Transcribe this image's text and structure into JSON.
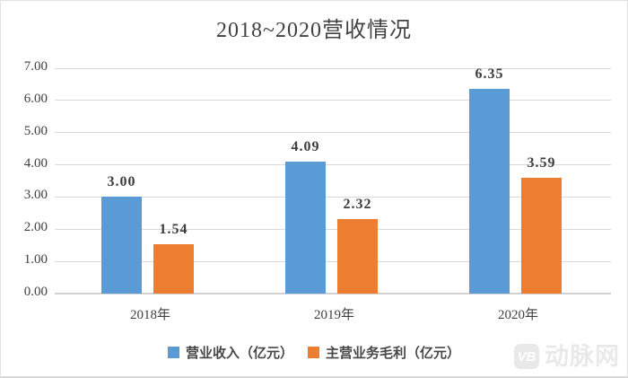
{
  "chart_data": {
    "type": "bar",
    "title": "2018~2020营收情况",
    "categories": [
      "2018年",
      "2019年",
      "2020年"
    ],
    "series": [
      {
        "name": "营业收入（亿元）",
        "color": "#5B9BD5",
        "values": [
          3.0,
          4.09,
          6.35
        ]
      },
      {
        "name": "主营业务毛利（亿元）",
        "color": "#ED7D31",
        "values": [
          1.54,
          2.32,
          3.59
        ]
      }
    ],
    "data_labels": [
      [
        "3.00",
        "4.09",
        "6.35"
      ],
      [
        "1.54",
        "2.32",
        "3.59"
      ]
    ],
    "ylim": [
      0,
      7
    ],
    "ytick_labels": [
      "0.00",
      "1.00",
      "2.00",
      "3.00",
      "4.00",
      "5.00",
      "6.00",
      "7.00"
    ],
    "grid": true,
    "legend_position": "bottom"
  },
  "watermark": {
    "logo_text": "VB",
    "text": "动脉网"
  },
  "colors": {
    "bar_blue": "#5B9BD5",
    "bar_orange": "#ED7D31",
    "gridline": "#dadada",
    "text": "#404040",
    "watermark": "#e9e9e9",
    "background": "#ffffff"
  }
}
